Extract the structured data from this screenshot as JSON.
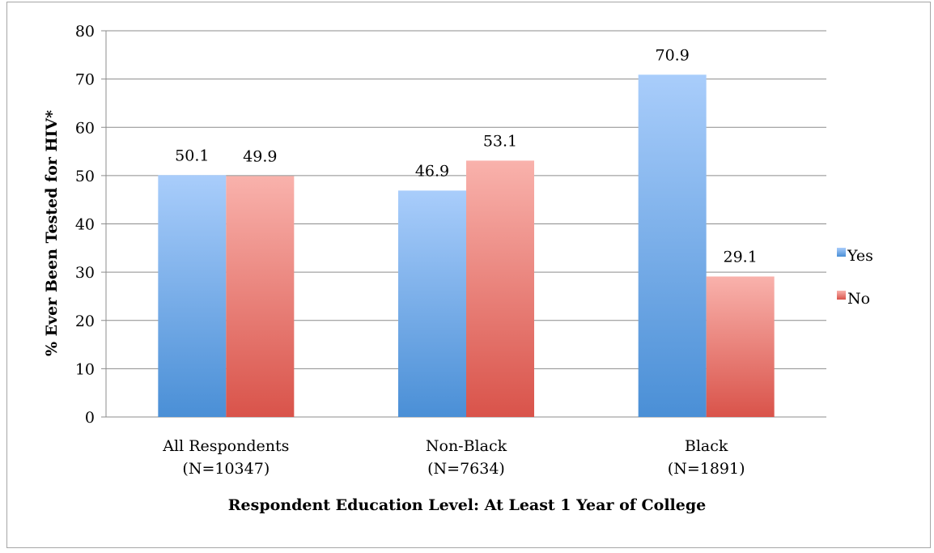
{
  "chart_data": {
    "type": "bar",
    "title": "",
    "categories": [
      [
        "All Respondents",
        "(N=10347)"
      ],
      [
        "Non-Black",
        "(N=7634)"
      ],
      [
        "Black",
        "(N=1891)"
      ]
    ],
    "series": [
      {
        "name": "Yes",
        "values": [
          50.1,
          46.9,
          70.9
        ],
        "value_labels": [
          "50.1",
          "46.9",
          "70.9"
        ],
        "color_top": "#a9cdfb",
        "color_bottom": "#4a8fd6"
      },
      {
        "name": "No",
        "values": [
          49.9,
          53.1,
          29.1
        ],
        "value_labels": [
          "49.9",
          "53.1",
          "29.1"
        ],
        "color_top": "#f9b2ac",
        "color_bottom": "#d9534a"
      }
    ],
    "xlabel": "Respondent Education Level: At Least 1 Year of College",
    "ylabel": "% Ever Been Tested for HIV*",
    "ylim": [
      0,
      80
    ],
    "yticks": [
      "0",
      "10",
      "20",
      "30",
      "40",
      "50",
      "60",
      "70",
      "80"
    ],
    "grid": true,
    "legend_position": "right",
    "gridline_color": "#8c8c8c"
  }
}
